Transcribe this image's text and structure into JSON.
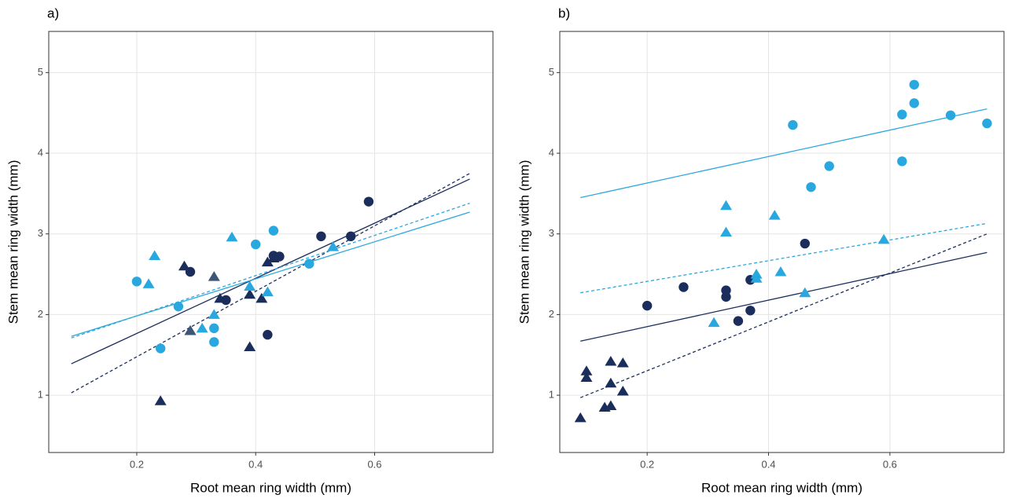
{
  "chart_data": [
    {
      "type": "scatter",
      "title": "a)",
      "xlabel": "Root mean ring width (mm)",
      "ylabel": "Stem mean ring width (mm)",
      "xlim": [
        0.052,
        0.799
      ],
      "ylim": [
        0.29,
        5.51
      ],
      "xticks": [
        0.2,
        0.4,
        0.6
      ],
      "yticks": [
        1,
        2,
        3,
        4,
        5
      ],
      "grid": true,
      "series": [
        {
          "color": "#29a8df",
          "marker": "circle",
          "x": [
            0.2,
            0.24,
            0.27,
            0.33,
            0.33,
            0.4,
            0.43,
            0.49
          ],
          "y": [
            2.41,
            1.58,
            2.1,
            1.83,
            1.66,
            2.87,
            3.04,
            2.63
          ]
        },
        {
          "color": "#1b2d5b",
          "marker": "circle",
          "x": [
            0.29,
            0.35,
            0.42,
            0.43,
            0.44,
            0.51,
            0.56,
            0.59
          ],
          "y": [
            2.53,
            2.18,
            1.75,
            2.73,
            2.72,
            2.97,
            2.97,
            3.4
          ]
        },
        {
          "color": "#1b2d5b",
          "marker": "triangle",
          "x": [
            0.28,
            0.24,
            0.29,
            0.34,
            0.39,
            0.39,
            0.41,
            0.42,
            0.43
          ],
          "y": [
            2.6,
            0.93,
            1.8,
            2.2,
            2.25,
            1.6,
            2.2,
            2.65,
            2.7
          ]
        },
        {
          "color": "#29a8df",
          "marker": "triangle",
          "x": [
            0.22,
            0.23,
            0.31,
            0.33,
            0.36,
            0.39,
            0.42,
            0.53
          ],
          "y": [
            2.38,
            2.73,
            1.83,
            2.0,
            2.96,
            2.35,
            2.28,
            2.84
          ]
        },
        {
          "color": "#3d5577",
          "marker": "triangle",
          "x": [
            0.33,
            0.29
          ],
          "y": [
            2.47,
            1.8
          ]
        }
      ],
      "lines": [
        {
          "color": "#1b2d5b",
          "dash": false,
          "x": [
            0.09,
            0.76
          ],
          "y": [
            1.39,
            3.68
          ]
        },
        {
          "color": "#1b2d5b",
          "dash": true,
          "x": [
            0.09,
            0.76
          ],
          "y": [
            1.03,
            3.75
          ]
        },
        {
          "color": "#29a8df",
          "dash": false,
          "x": [
            0.09,
            0.76
          ],
          "y": [
            1.73,
            3.27
          ]
        },
        {
          "color": "#29a8df",
          "dash": true,
          "x": [
            0.09,
            0.76
          ],
          "y": [
            1.71,
            3.38
          ]
        }
      ]
    },
    {
      "type": "scatter",
      "title": "b)",
      "xlabel": "Root mean ring width (mm)",
      "ylabel": "Stem mean ring width (mm)",
      "xlim": [
        0.056,
        0.788
      ],
      "ylim": [
        0.29,
        5.51
      ],
      "xticks": [
        0.2,
        0.4,
        0.6
      ],
      "yticks": [
        1,
        2,
        3,
        4,
        5
      ],
      "grid": true,
      "series": [
        {
          "color": "#29a8df",
          "marker": "circle",
          "x": [
            0.44,
            0.47,
            0.5,
            0.62,
            0.62,
            0.64,
            0.64,
            0.7,
            0.76
          ],
          "y": [
            4.35,
            3.58,
            3.84,
            4.48,
            3.9,
            4.85,
            4.62,
            4.47,
            4.37
          ]
        },
        {
          "color": "#1b2d5b",
          "marker": "circle",
          "x": [
            0.2,
            0.26,
            0.33,
            0.33,
            0.35,
            0.37,
            0.37,
            0.46
          ],
          "y": [
            2.11,
            2.34,
            2.22,
            2.3,
            1.92,
            2.43,
            2.05,
            2.88
          ]
        },
        {
          "color": "#1b2d5b",
          "marker": "triangle",
          "x": [
            0.09,
            0.1,
            0.1,
            0.14,
            0.14,
            0.13,
            0.14,
            0.16,
            0.16
          ],
          "y": [
            0.72,
            1.3,
            1.22,
            1.42,
            1.15,
            0.85,
            0.87,
            1.4,
            1.05
          ]
        },
        {
          "color": "#29a8df",
          "marker": "triangle",
          "x": [
            0.31,
            0.33,
            0.33,
            0.38,
            0.38,
            0.41,
            0.42,
            0.46,
            0.59
          ],
          "y": [
            1.9,
            3.35,
            3.02,
            2.5,
            2.45,
            3.23,
            2.53,
            2.27,
            2.93
          ]
        }
      ],
      "lines": [
        {
          "color": "#29a8df",
          "dash": false,
          "x": [
            0.09,
            0.76
          ],
          "y": [
            3.45,
            4.55
          ]
        },
        {
          "color": "#29a8df",
          "dash": true,
          "x": [
            0.09,
            0.76
          ],
          "y": [
            2.27,
            3.13
          ]
        },
        {
          "color": "#1b2d5b",
          "dash": false,
          "x": [
            0.09,
            0.76
          ],
          "y": [
            1.67,
            2.77
          ]
        },
        {
          "color": "#1b2d5b",
          "dash": true,
          "x": [
            0.09,
            0.76
          ],
          "y": [
            0.97,
            3.0
          ]
        }
      ]
    }
  ]
}
